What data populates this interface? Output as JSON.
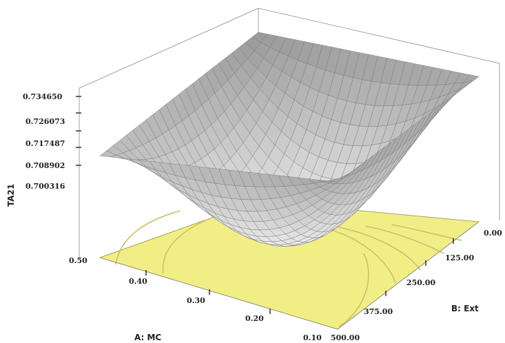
{
  "chart_data": {
    "type": "surface",
    "title": "",
    "z_axis": {
      "label": "TA21",
      "ticks": [
        "0.734650",
        "0.726073",
        "0.717487",
        "0.708902",
        "0.700316"
      ],
      "range": [
        0.6917,
        0.73465
      ]
    },
    "x_axis": {
      "label": "A: MC",
      "ticks": [
        "0.10",
        "0.20",
        "0.30",
        "0.40",
        "0.50"
      ],
      "range": [
        0.1,
        0.5
      ]
    },
    "y_axis": {
      "label": "B: Ext",
      "ticks": [
        "500.00",
        "375.00",
        "250.00",
        "125.00",
        "0.00"
      ],
      "range": [
        0.0,
        500.0
      ]
    },
    "surface_points": [
      {
        "MC": 0.5,
        "Ext": 0.0,
        "TA21": 0.7175
      },
      {
        "MC": 0.1,
        "Ext": 0.0,
        "TA21": 0.729
      },
      {
        "MC": 0.5,
        "Ext": 500.0,
        "TA21": 0.7345
      },
      {
        "MC": 0.1,
        "Ext": 500.0,
        "TA21": 0.7285
      },
      {
        "MC": 0.3,
        "Ext": 250.0,
        "TA21": 0.695
      }
    ],
    "grid": true,
    "colors": {
      "surface": "#e6e6e6",
      "floor": "#f2ee86",
      "contour": "#c6c170",
      "mesh": "#777777"
    }
  }
}
